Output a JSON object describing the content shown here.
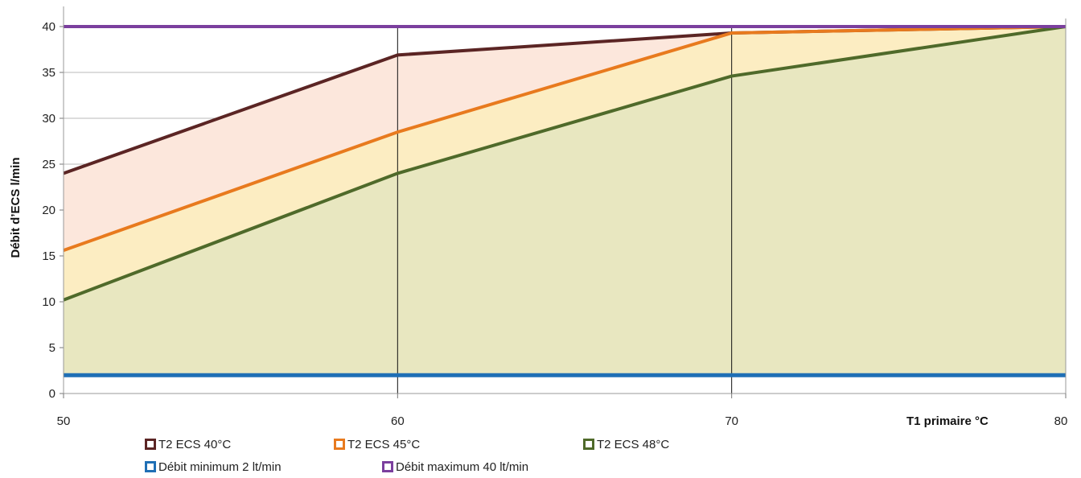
{
  "chart_data": {
    "type": "area",
    "xlabel": "T1 primaire °C",
    "ylabel": "Débit d’ECS l/min",
    "xlim": [
      50,
      80
    ],
    "ylim": [
      0,
      40
    ],
    "x_ticks": [
      "50",
      "60",
      "70",
      "80"
    ],
    "y_ticks": [
      "0",
      "5",
      "10",
      "15",
      "20",
      "25",
      "30",
      "35",
      "40"
    ],
    "x": [
      50,
      60,
      70,
      80
    ],
    "series": [
      {
        "name": "T2 ECS 40°C",
        "values": [
          24,
          36.9,
          39.3,
          40
        ],
        "color": "#5b2524",
        "fill": "#fce7dc"
      },
      {
        "name": "T2 ECS 45°C",
        "values": [
          15.6,
          28.5,
          39.3,
          40
        ],
        "color": "#e87a1e",
        "fill": "#fcedc2"
      },
      {
        "name": "T2 ECS 48°C",
        "values": [
          10.2,
          24,
          34.6,
          40
        ],
        "color": "#4f6a2a",
        "fill": "#e8e7c0"
      },
      {
        "name": "Débit minimum  2 lt/min",
        "values": [
          2,
          2,
          2,
          2
        ],
        "color": "#1f6fb5"
      },
      {
        "name": "Débit maximum  40 lt/min",
        "values": [
          40,
          40,
          40,
          40
        ],
        "color": "#7b3f9e"
      }
    ],
    "grid": "horizontal gridlines, vertical lines at 60 and 70",
    "legend_position": "bottom"
  }
}
